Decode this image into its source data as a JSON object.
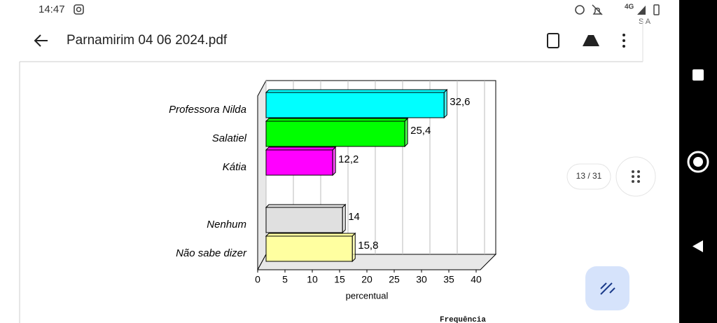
{
  "status_bar": {
    "time": "14:47",
    "network": "4G",
    "carrier": "S A"
  },
  "app_bar": {
    "title": "Parnamirim 04 06 2024.pdf"
  },
  "page_indicator": "13 / 31",
  "footer_text": "Frequência",
  "chart_data": {
    "type": "bar",
    "orientation": "horizontal",
    "three_d": true,
    "categories": [
      "Professora Nilda",
      "Salatiel",
      "Kátia",
      null,
      "Nenhum",
      "Não sabe dizer"
    ],
    "values": [
      32.6,
      25.4,
      12.2,
      null,
      14,
      15.8
    ],
    "value_labels": [
      "32,6",
      "25,4",
      "12,2",
      null,
      "14",
      "15,8"
    ],
    "colors": [
      "#00ffff",
      "#00ff00",
      "#ff00ff",
      null,
      "#e0e0e0",
      "#ffffa0"
    ],
    "xlim": [
      0,
      40
    ],
    "xticks": [
      0,
      5,
      10,
      15,
      20,
      25,
      30,
      35,
      40
    ],
    "xlabel": "percentual",
    "grid": true
  }
}
